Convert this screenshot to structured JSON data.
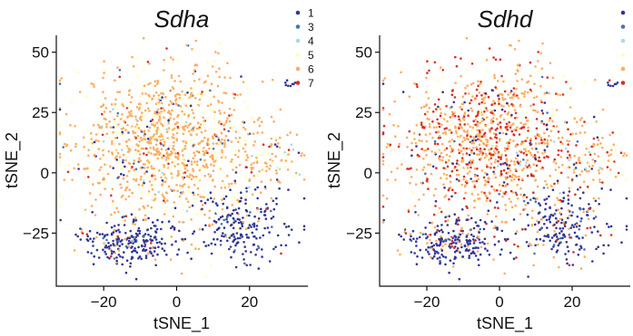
{
  "chart_data": [
    {
      "type": "scatter",
      "title": "Sdha",
      "xlabel": "tSNE_1",
      "ylabel": "tSNE_2",
      "xlim": [
        -33,
        36
      ],
      "ylim": [
        -47,
        57
      ],
      "xticks": [
        "−20",
        "0",
        "20"
      ],
      "yticks": [
        "50",
        "25",
        "0",
        "−25"
      ],
      "xtick_values": [
        -20,
        0,
        20
      ],
      "ytick_values": [
        50,
        25,
        0,
        -25
      ],
      "grid": false,
      "legend": {
        "placement": "top-right",
        "entries": [
          {
            "label": "1",
            "color": "#313695"
          },
          {
            "label": "3",
            "color": "#4575b4"
          },
          {
            "label": "4",
            "color": "#abd9e9"
          },
          {
            "label": "5",
            "color": "#ffffbf"
          },
          {
            "label": "6",
            "color": "#fdae61"
          },
          {
            "label": "7",
            "color": "#d73027"
          }
        ]
      },
      "regions": [
        {
          "name": "main-cloud",
          "center": [
            -2,
            12
          ],
          "spread": [
            13,
            16
          ],
          "count": 1150,
          "mix": {
            "1": 0.04,
            "3": 0.02,
            "4": 0.02,
            "5": 0.22,
            "6": 0.66,
            "7": 0.04
          }
        },
        {
          "name": "lower-left",
          "center": [
            -13,
            -28
          ],
          "spread": [
            7,
            5
          ],
          "count": 230,
          "mix": {
            "1": 0.84,
            "3": 0.04,
            "5": 0.03,
            "6": 0.07,
            "7": 0.02
          }
        },
        {
          "name": "lower-right",
          "center": [
            18,
            -22
          ],
          "spread": [
            7,
            8
          ],
          "count": 230,
          "mix": {
            "1": 0.82,
            "3": 0.05,
            "5": 0.04,
            "6": 0.07,
            "7": 0.02
          }
        },
        {
          "name": "right-arm",
          "center": [
            26,
            5
          ],
          "spread": [
            5,
            5
          ],
          "count": 70,
          "mix": {
            "1": 0.05,
            "4": 0.05,
            "5": 0.35,
            "6": 0.52,
            "7": 0.03
          }
        },
        {
          "name": "top-right-cluster",
          "center": [
            31,
            37
          ],
          "spread": [
            1.5,
            1
          ],
          "count": 8,
          "mix": {
            "1": 1.0
          }
        }
      ]
    },
    {
      "type": "scatter",
      "title": "Sdhd",
      "xlabel": "tSNE_1",
      "ylabel": "tSNE_2",
      "xlim": [
        -33,
        36
      ],
      "ylim": [
        -47,
        57
      ],
      "xticks": [
        "−20",
        "0",
        "20"
      ],
      "yticks": [
        "50",
        "25",
        "0",
        "−25"
      ],
      "xtick_values": [
        -20,
        0,
        20
      ],
      "ytick_values": [
        50,
        25,
        0,
        -25
      ],
      "grid": false,
      "legend": {
        "placement": "top-right",
        "entries": [
          {
            "label": "",
            "color": "#313695"
          },
          {
            "label": "",
            "color": "#4575b4"
          },
          {
            "label": "",
            "color": "#abd9e9"
          },
          {
            "label": "",
            "color": "#ffffbf"
          },
          {
            "label": "",
            "color": "#fdae61"
          },
          {
            "label": "",
            "color": "#d73027"
          }
        ]
      },
      "regions": [
        {
          "name": "main-cloud",
          "center": [
            -2,
            12
          ],
          "spread": [
            13,
            16
          ],
          "count": 1150,
          "mix": {
            "1": 0.06,
            "3": 0.02,
            "4": 0.01,
            "5": 0.08,
            "6": 0.53,
            "7": 0.3
          }
        },
        {
          "name": "lower-left",
          "center": [
            -13,
            -28
          ],
          "spread": [
            7,
            5
          ],
          "count": 230,
          "mix": {
            "1": 0.72,
            "3": 0.05,
            "5": 0.03,
            "6": 0.12,
            "7": 0.08
          }
        },
        {
          "name": "lower-right",
          "center": [
            18,
            -22
          ],
          "spread": [
            7,
            8
          ],
          "count": 230,
          "mix": {
            "1": 0.66,
            "3": 0.08,
            "5": 0.04,
            "6": 0.14,
            "7": 0.08
          }
        },
        {
          "name": "right-arm",
          "center": [
            26,
            5
          ],
          "spread": [
            5,
            5
          ],
          "count": 70,
          "mix": {
            "1": 0.05,
            "4": 0.08,
            "5": 0.17,
            "6": 0.55,
            "7": 0.15
          }
        },
        {
          "name": "top-right-cluster",
          "center": [
            31,
            37
          ],
          "spread": [
            1.5,
            1
          ],
          "count": 8,
          "mix": {
            "1": 0.9,
            "7": 0.1
          }
        }
      ]
    }
  ]
}
